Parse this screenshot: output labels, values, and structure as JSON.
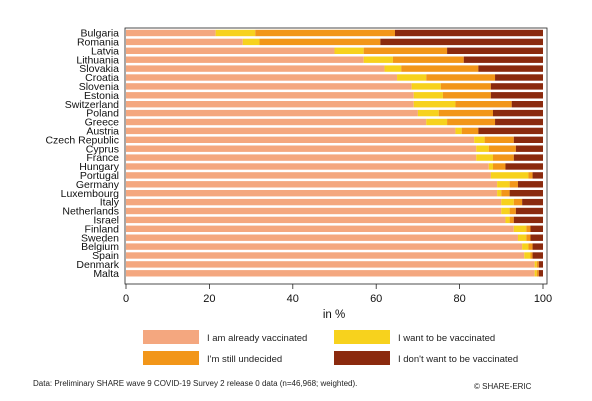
{
  "chart_data": {
    "type": "bar",
    "orientation": "horizontal",
    "stacked": true,
    "xlabel": "in %",
    "xlim": [
      0,
      100
    ],
    "xticks": [
      "0",
      "20",
      "40",
      "60",
      "80",
      "100"
    ],
    "grid": false,
    "legend_position": "bottom",
    "categories": [
      "Bulgaria",
      "Romania",
      "Latvia",
      "Lithuania",
      "Slovakia",
      "Croatia",
      "Slovenia",
      "Estonia",
      "Switzerland",
      "Poland",
      "Greece",
      "Austria",
      "Czech Republic",
      "Cyprus",
      "France",
      "Hungary",
      "Portugal",
      "Germany",
      "Luxembourg",
      "Italy",
      "Netherlands",
      "Israel",
      "Finland",
      "Sweden",
      "Belgium",
      "Spain",
      "Denmark",
      "Malta"
    ],
    "series": [
      {
        "name": "I am already vaccinated",
        "color": "#f4a77f",
        "values": [
          21.5,
          28,
          50,
          57,
          62,
          65,
          68.5,
          69,
          69,
          70,
          72,
          79,
          83.5,
          84,
          84,
          87,
          87.5,
          89,
          89,
          90,
          90,
          91,
          93,
          94,
          95,
          95.5,
          98,
          98
        ]
      },
      {
        "name": "I want to be vaccinated",
        "color": "#f7d21d",
        "values": [
          9.5,
          4,
          7,
          7,
          4,
          7,
          7,
          7,
          10,
          5,
          5,
          1.5,
          2.5,
          3,
          4,
          1,
          9,
          3,
          1,
          3,
          2,
          1,
          3,
          2,
          1.5,
          1.5,
          0.5,
          0.5
        ]
      },
      {
        "name": "I'm still undecided",
        "color": "#f29619",
        "values": [
          33.5,
          29,
          20,
          17,
          18.5,
          16.5,
          12,
          11.5,
          13.5,
          13,
          11.5,
          4,
          7,
          6.5,
          5,
          3,
          1,
          2,
          2,
          2,
          1.5,
          1,
          1,
          1,
          1,
          0.5,
          0.5,
          0.5
        ]
      },
      {
        "name": "I don't want to be vaccinated",
        "color": "#8b2a0e",
        "values": [
          35.5,
          39,
          23,
          19,
          15.5,
          11.5,
          12.5,
          12.5,
          7.5,
          12,
          11.5,
          15.5,
          7,
          6.5,
          7,
          9,
          2.5,
          6,
          8,
          5,
          6.5,
          7,
          3,
          3,
          2.5,
          2.5,
          1,
          1
        ]
      }
    ]
  },
  "legend": {
    "items": [
      {
        "label": "I am already vaccinated",
        "color": "#f4a77f"
      },
      {
        "label": "I want to be vaccinated",
        "color": "#f7d21d"
      },
      {
        "label": "I'm still undecided",
        "color": "#f29619"
      },
      {
        "label": "I don't want to be vaccinated",
        "color": "#8b2a0e"
      }
    ]
  },
  "footer": {
    "source": "Data: Preliminary SHARE wave 9 COVID-19 Survey 2 release 0 data (n=46,968; weighted).",
    "credit": "© SHARE-ERIC"
  }
}
